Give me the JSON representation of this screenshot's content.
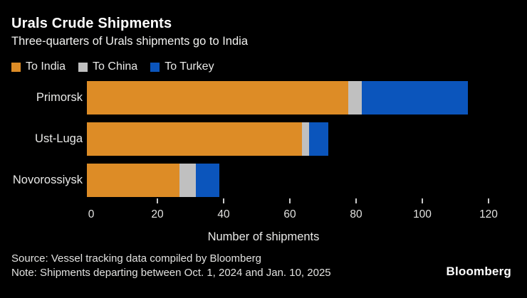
{
  "header": {
    "title": "Urals Crude Shipments",
    "subtitle": "Three-quarters of Urals shipments go to India"
  },
  "colors": {
    "background": "#000000",
    "title_text": "#ffffff",
    "label_text": "#e9e9e7",
    "tick_text": "#e2e2e0",
    "india_orange": "#dd8c26",
    "china_gray": "#c0c0c0",
    "turkey_blue": "#0b55bc"
  },
  "chart_data": {
    "type": "bar",
    "orientation": "horizontal",
    "stacked": true,
    "title": "Urals Crude Shipments",
    "subtitle": "Three-quarters of Urals shipments go to India",
    "categories": [
      "Primorsk",
      "Ust-Luga",
      "Novorossiysk"
    ],
    "series": [
      {
        "name": "To India",
        "color": "#dd8c26",
        "values": [
          79,
          65,
          28
        ]
      },
      {
        "name": "To China",
        "color": "#c0c0c0",
        "values": [
          4,
          2,
          5
        ]
      },
      {
        "name": "To Turkey",
        "color": "#0b55bc",
        "values": [
          32,
          6,
          7
        ]
      }
    ],
    "totals": [
      115,
      73,
      40
    ],
    "xlabel": "Number of shipments",
    "xlim": [
      0,
      120
    ],
    "xticks": [
      0,
      20,
      40,
      60,
      80,
      100,
      120
    ],
    "grid": false,
    "legend_position": "top-left"
  },
  "footer": {
    "source": "Source: Vessel tracking data compiled by Bloomberg",
    "note": "Note: Shipments departing between Oct. 1, 2024 and Jan. 10, 2025",
    "logo": "Bloomberg"
  }
}
